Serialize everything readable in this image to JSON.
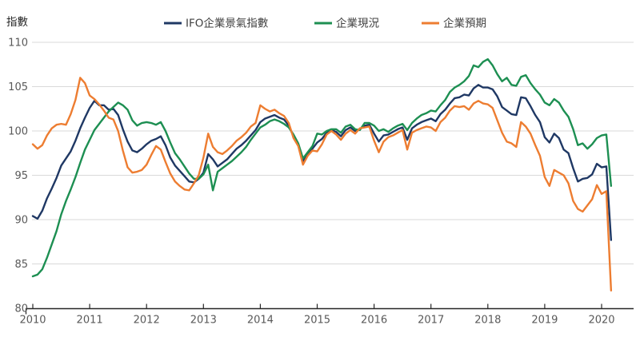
{
  "chart_data": {
    "type": "line",
    "title": "",
    "ylabel": "指數",
    "xlabel": "",
    "x_unit": "month",
    "x_start": "2010-01",
    "x_end": "2020-03",
    "x_tick_labels": [
      "2010",
      "2011",
      "2012",
      "2013",
      "2014",
      "2015",
      "2016",
      "2017",
      "2018",
      "2019",
      "2020"
    ],
    "y_ticks": [
      110,
      105,
      100,
      95,
      90,
      85,
      80
    ],
    "ylim": [
      80,
      110
    ],
    "grid": "horizontal",
    "legend_position": "top",
    "axis_color": "#262626",
    "grid_color": "#d9d9d9",
    "series": [
      {
        "name": "IFO企業景氣指數",
        "color": "#1f3864",
        "values": [
          90.4,
          90.1,
          91.0,
          92.4,
          93.5,
          94.7,
          96.1,
          96.9,
          97.7,
          98.9,
          100.3,
          101.5,
          102.6,
          103.4,
          102.9,
          102.9,
          102.4,
          102.5,
          101.8,
          100.2,
          98.8,
          97.8,
          97.6,
          98.0,
          98.5,
          98.9,
          99.1,
          99.4,
          98.4,
          97.0,
          96.1,
          95.5,
          94.9,
          94.3,
          94.2,
          94.6,
          95.3,
          97.4,
          96.8,
          96.0,
          96.4,
          96.8,
          97.4,
          98.0,
          98.4,
          98.9,
          99.5,
          100.1,
          101.0,
          101.4,
          101.6,
          101.8,
          101.5,
          101.3,
          100.6,
          99.4,
          98.4,
          96.6,
          97.4,
          98.0,
          98.7,
          99.1,
          99.8,
          100.1,
          99.9,
          99.4,
          100.1,
          100.4,
          100.0,
          100.2,
          100.6,
          100.7,
          99.7,
          98.8,
          99.5,
          99.6,
          99.9,
          100.2,
          100.4,
          99.0,
          100.3,
          100.7,
          101.0,
          101.2,
          101.4,
          101.1,
          101.9,
          102.4,
          103.1,
          103.7,
          103.8,
          104.1,
          104.0,
          104.8,
          105.2,
          104.9,
          104.9,
          104.7,
          103.9,
          102.7,
          102.3,
          101.9,
          101.8,
          103.8,
          103.7,
          102.8,
          101.8,
          101.0,
          99.3,
          98.7,
          99.7,
          99.2,
          97.9,
          97.5,
          95.8,
          94.3,
          94.6,
          94.7,
          95.1,
          96.3,
          95.9,
          96.0,
          87.7
        ]
      },
      {
        "name": "企業現況",
        "color": "#1d8f52",
        "values": [
          83.6,
          83.8,
          84.4,
          85.7,
          87.2,
          88.7,
          90.6,
          92.1,
          93.4,
          94.8,
          96.4,
          97.9,
          99.0,
          100.1,
          100.8,
          101.5,
          102.2,
          102.7,
          103.2,
          102.9,
          102.4,
          101.2,
          100.6,
          100.9,
          101.0,
          100.9,
          100.7,
          101.0,
          100.0,
          98.7,
          97.5,
          96.8,
          96.0,
          95.2,
          94.6,
          94.6,
          95.1,
          96.2,
          93.3,
          95.4,
          95.8,
          96.2,
          96.6,
          97.1,
          97.6,
          98.2,
          99.0,
          99.7,
          100.4,
          100.7,
          101.1,
          101.3,
          101.1,
          100.8,
          100.4,
          99.6,
          98.6,
          96.9,
          97.6,
          98.3,
          99.7,
          99.6,
          100.0,
          100.2,
          100.2,
          99.8,
          100.5,
          100.7,
          100.2,
          100.1,
          100.9,
          100.9,
          100.6,
          100.0,
          100.2,
          99.9,
          100.3,
          100.6,
          100.8,
          100.1,
          100.9,
          101.4,
          101.8,
          102.0,
          102.3,
          102.2,
          102.9,
          103.5,
          104.4,
          104.9,
          105.2,
          105.6,
          106.2,
          107.4,
          107.2,
          107.8,
          108.1,
          107.4,
          106.4,
          105.6,
          106.0,
          105.2,
          105.1,
          106.1,
          106.3,
          105.4,
          104.7,
          104.1,
          103.2,
          102.9,
          103.6,
          103.2,
          102.3,
          101.6,
          100.2,
          98.4,
          98.6,
          98.0,
          98.5,
          99.2,
          99.5,
          99.6,
          93.8
        ]
      },
      {
        "name": "企業預期",
        "color": "#ed7d31",
        "values": [
          98.5,
          98.0,
          98.4,
          99.5,
          100.3,
          100.7,
          100.8,
          100.7,
          101.9,
          103.5,
          106.0,
          105.4,
          104.0,
          103.6,
          103.0,
          102.3,
          101.5,
          101.3,
          100.0,
          97.8,
          95.9,
          95.3,
          95.4,
          95.6,
          96.2,
          97.3,
          98.3,
          97.9,
          96.5,
          95.2,
          94.3,
          93.8,
          93.4,
          93.3,
          94.1,
          95.0,
          97.0,
          99.7,
          98.2,
          97.6,
          97.4,
          97.8,
          98.3,
          98.9,
          99.3,
          99.8,
          100.5,
          100.9,
          102.9,
          102.5,
          102.2,
          102.4,
          102.0,
          101.7,
          100.9,
          99.2,
          98.3,
          96.2,
          97.2,
          97.8,
          97.7,
          98.5,
          99.6,
          100.0,
          99.6,
          99.0,
          99.7,
          100.1,
          99.7,
          100.3,
          100.4,
          100.5,
          98.9,
          97.6,
          98.8,
          99.3,
          99.5,
          99.8,
          100.1,
          97.9,
          99.8,
          100.1,
          100.3,
          100.5,
          100.4,
          100.0,
          101.0,
          101.5,
          102.3,
          102.8,
          102.7,
          102.8,
          102.4,
          103.1,
          103.4,
          103.1,
          103.0,
          102.6,
          101.2,
          99.8,
          98.8,
          98.6,
          98.2,
          101.0,
          100.5,
          99.7,
          98.4,
          97.2,
          94.8,
          93.8,
          95.6,
          95.3,
          95.0,
          94.1,
          92.1,
          91.2,
          90.9,
          91.6,
          92.3,
          93.9,
          92.9,
          93.2,
          82.0
        ]
      }
    ]
  }
}
